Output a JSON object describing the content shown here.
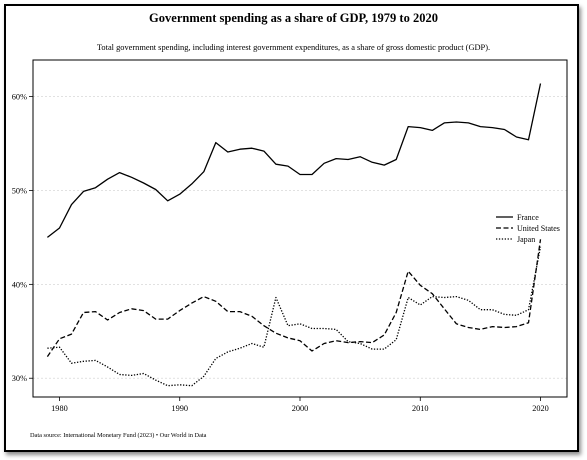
{
  "chart_data": {
    "type": "line",
    "title": "Government spending as a share of GDP, 1979 to 2020",
    "subtitle": "Total government spending, including interest government expenditures, as a share of gross domestic product (GDP).",
    "source": "Data source: International Monetary Fund (2023) • Our World in Data",
    "xlabel": "",
    "ylabel": "",
    "xlim": [
      1977.8,
      2022.2
    ],
    "ylim": [
      28.0,
      63.9
    ],
    "x_ticks": [
      1980,
      1990,
      2000,
      2010,
      2020
    ],
    "y_ticks": [
      30,
      40,
      50,
      60
    ],
    "y_tick_labels": [
      "30%",
      "40%",
      "50%",
      "60%"
    ],
    "grid": "horizontal-dashed",
    "legend_position": "right",
    "x": [
      1979,
      1980,
      1981,
      1982,
      1983,
      1984,
      1985,
      1986,
      1987,
      1988,
      1989,
      1990,
      1991,
      1992,
      1993,
      1994,
      1995,
      1996,
      1997,
      1998,
      1999,
      2000,
      2001,
      2002,
      2003,
      2004,
      2005,
      2006,
      2007,
      2008,
      2009,
      2010,
      2011,
      2012,
      2013,
      2014,
      2015,
      2016,
      2017,
      2018,
      2019,
      2020
    ],
    "series": [
      {
        "name": "France",
        "style": "solid",
        "values": [
          45.0,
          46.0,
          48.5,
          49.9,
          50.3,
          51.2,
          51.9,
          51.4,
          50.8,
          50.1,
          48.9,
          49.6,
          50.7,
          52.0,
          55.1,
          54.1,
          54.4,
          54.5,
          54.2,
          52.8,
          52.6,
          51.7,
          51.7,
          52.9,
          53.4,
          53.3,
          53.6,
          53.0,
          52.7,
          53.3,
          56.8,
          56.7,
          56.4,
          57.2,
          57.3,
          57.2,
          56.8,
          56.7,
          56.5,
          55.7,
          55.4,
          61.4
        ]
      },
      {
        "name": "United States",
        "style": "dashed",
        "values": [
          32.3,
          34.2,
          34.7,
          37.0,
          37.1,
          36.2,
          37.0,
          37.4,
          37.2,
          36.3,
          36.3,
          37.2,
          38.0,
          38.7,
          38.2,
          37.1,
          37.1,
          36.6,
          35.6,
          34.8,
          34.3,
          34.0,
          32.9,
          33.7,
          34.0,
          33.8,
          33.9,
          33.8,
          34.6,
          37.0,
          41.4,
          39.9,
          39.0,
          37.4,
          35.8,
          35.4,
          35.2,
          35.5,
          35.4,
          35.5,
          35.9,
          44.8
        ]
      },
      {
        "name": "Japan",
        "style": "dotted",
        "values": [
          33.2,
          33.3,
          31.6,
          31.8,
          31.9,
          31.2,
          30.4,
          30.3,
          30.5,
          29.8,
          29.2,
          29.3,
          29.2,
          30.2,
          32.1,
          32.8,
          33.2,
          33.7,
          33.3,
          38.6,
          35.6,
          35.8,
          35.3,
          35.3,
          35.2,
          33.9,
          33.7,
          33.1,
          33.1,
          34.1,
          38.6,
          37.8,
          38.7,
          38.6,
          38.7,
          38.3,
          37.3,
          37.3,
          36.8,
          36.7,
          37.3,
          44.0
        ]
      }
    ]
  }
}
